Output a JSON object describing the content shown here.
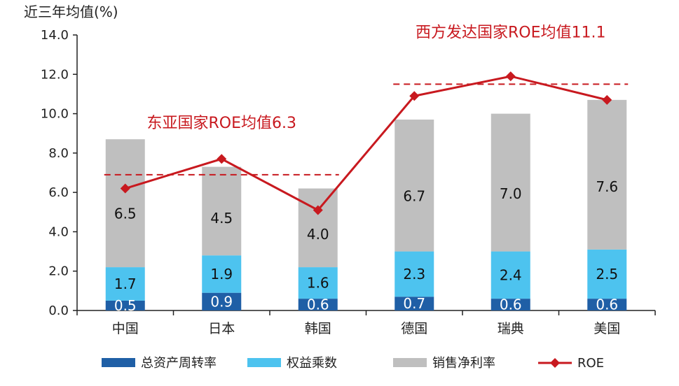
{
  "chart_data": {
    "type": "bar",
    "stacked": true,
    "ylabel": "近三年均值(%)",
    "ylim": [
      0,
      14
    ],
    "yticks": [
      "0.0",
      "2.0",
      "4.0",
      "6.0",
      "8.0",
      "10.0",
      "12.0",
      "14.0"
    ],
    "categories": [
      "中国",
      "日本",
      "韩国",
      "德国",
      "瑞典",
      "美国"
    ],
    "series": [
      {
        "name": "总资产周转率",
        "kind": "bar",
        "color": "#1f5fa6",
        "values": [
          0.5,
          0.9,
          0.6,
          0.7,
          0.6,
          0.6
        ],
        "labels": [
          "0.5",
          "0.9",
          "0.6",
          "0.7",
          "0.6",
          "0.6"
        ]
      },
      {
        "name": "权益乘数",
        "kind": "bar",
        "color": "#4dc3ef",
        "values": [
          1.7,
          1.9,
          1.6,
          2.3,
          2.4,
          2.5
        ],
        "labels": [
          "1.7",
          "1.9",
          "1.6",
          "2.3",
          "2.4",
          "2.5"
        ]
      },
      {
        "name": "销售净利率",
        "kind": "bar",
        "color": "#bfbfbf",
        "values": [
          6.5,
          4.5,
          4.0,
          6.7,
          7.0,
          7.6
        ],
        "labels": [
          "6.5",
          "4.5",
          "4.0",
          "6.7",
          "7.0",
          "7.6"
        ]
      },
      {
        "name": "ROE",
        "kind": "line",
        "color": "#c8191f",
        "values": [
          6.2,
          7.7,
          5.1,
          10.9,
          11.9,
          10.7
        ]
      }
    ],
    "annotations": [
      {
        "text": "东亚国家ROE均值6.3",
        "value": 6.9,
        "from_category": 0,
        "to_category": 2
      },
      {
        "text": "西方发达国家ROE均值11.1",
        "value": 11.5,
        "from_category": 3,
        "to_category": 5
      }
    ],
    "legend": {
      "position": "bottom"
    },
    "grid": false
  }
}
